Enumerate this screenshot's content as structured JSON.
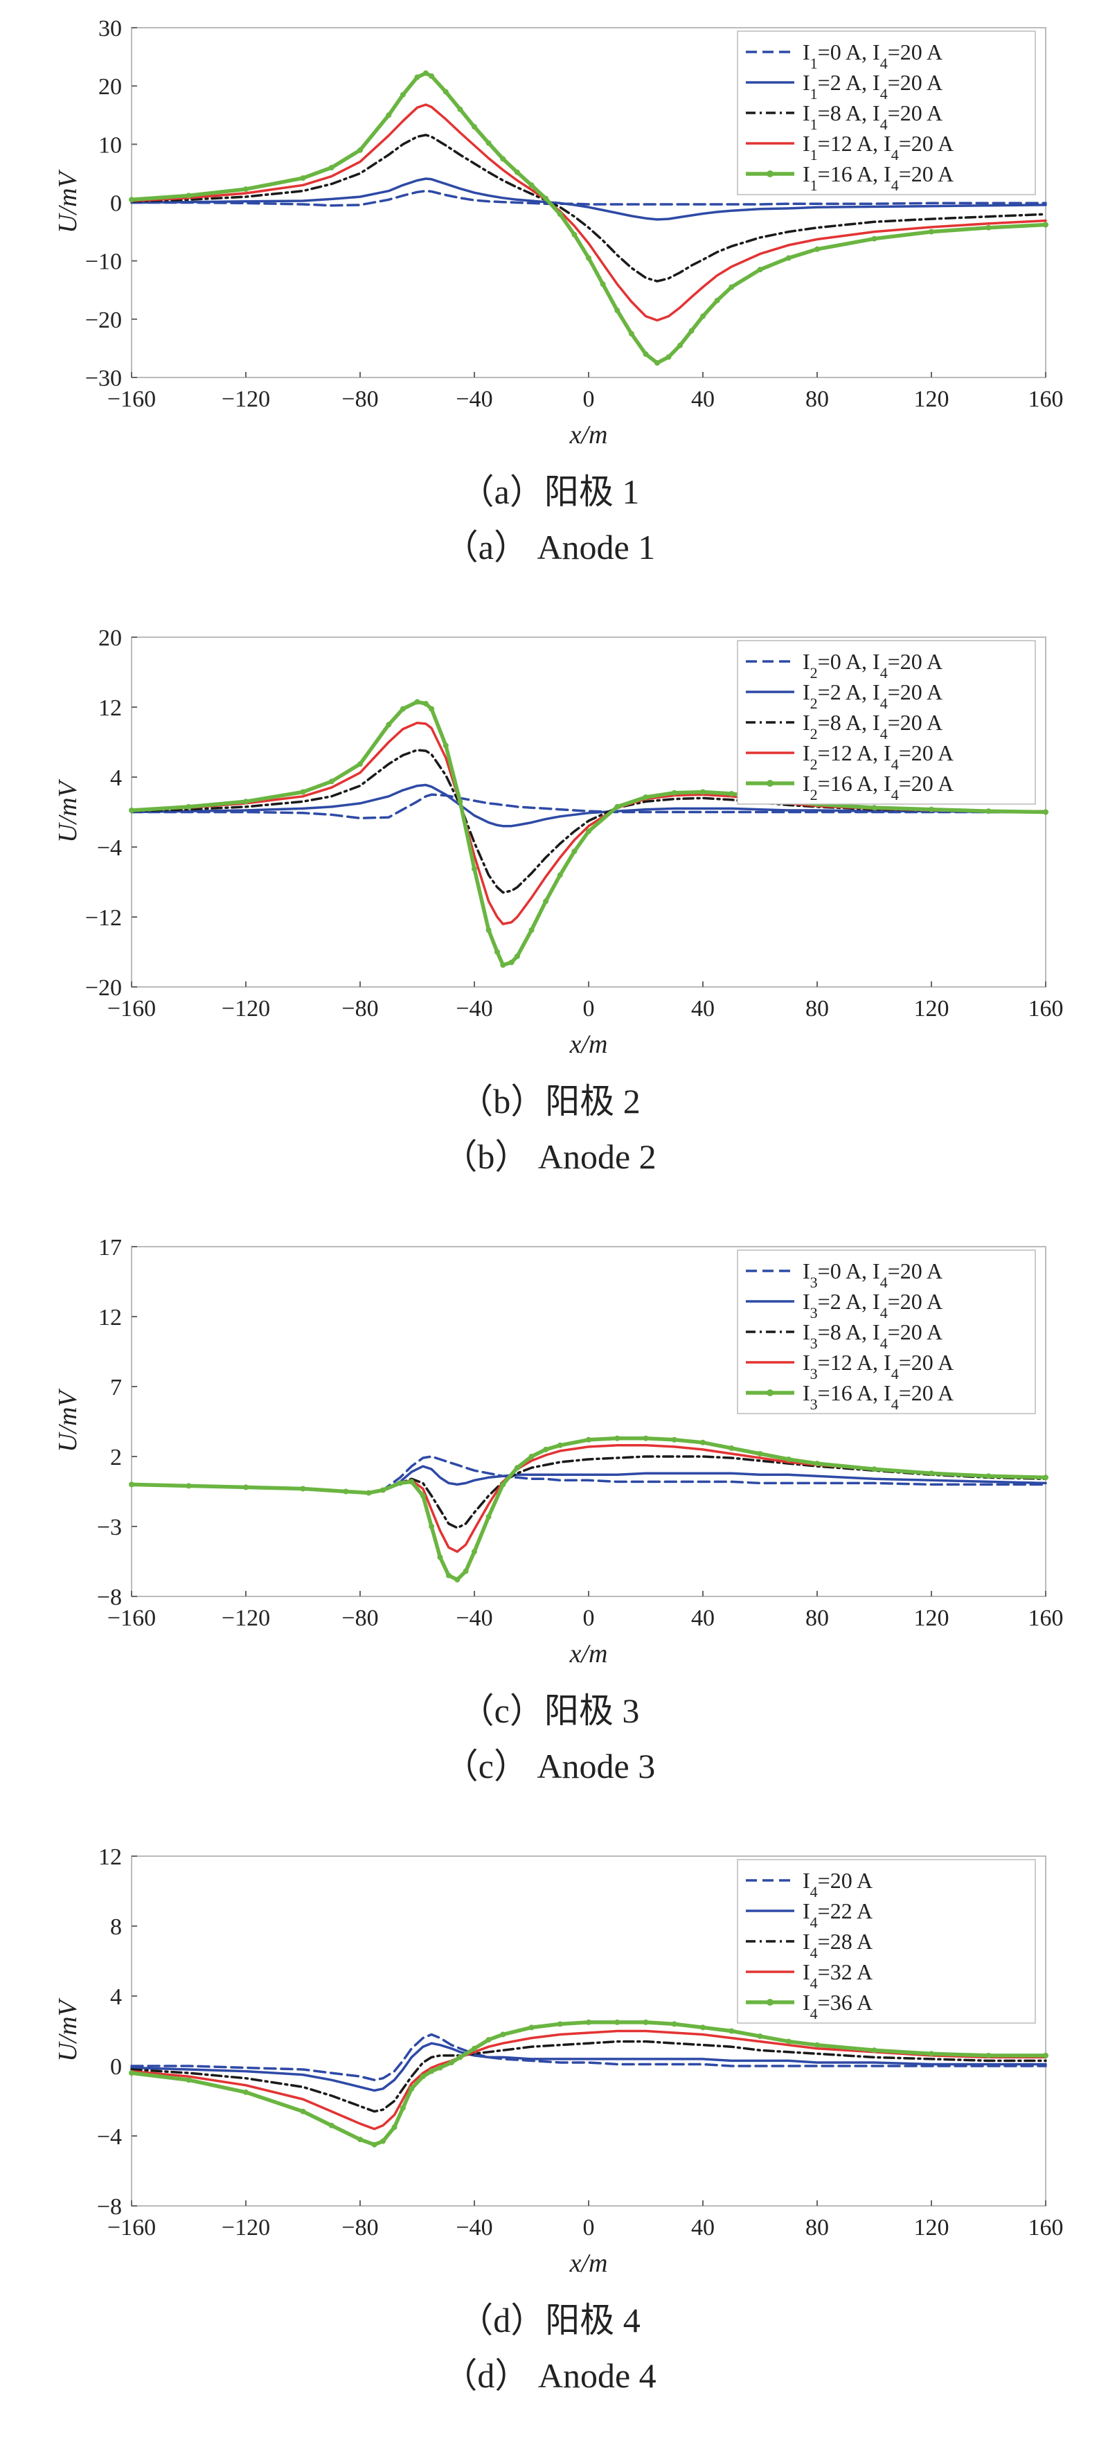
{
  "chart_data": [
    {
      "type": "line",
      "xlabel": "x/m",
      "ylabel": "U/mV",
      "xlim": [
        -160,
        160
      ],
      "ylim": [
        -30,
        30
      ],
      "xticks": [
        "−160",
        "−120",
        "−80",
        "−40",
        "0",
        "40",
        "80",
        "120",
        "160"
      ],
      "yticks": [
        "30",
        "20",
        "10",
        "0",
        "−10",
        "−20",
        "−30"
      ],
      "legend_position": "top-right",
      "caption_cn": "（a）阳极 1",
      "caption_en": "（a） Anode 1",
      "x": [
        -160,
        -140,
        -120,
        -100,
        -90,
        -80,
        -70,
        -65,
        -60,
        -57,
        -55,
        -50,
        -45,
        -40,
        -35,
        -30,
        -25,
        -20,
        -15,
        -10,
        -5,
        0,
        5,
        10,
        15,
        20,
        24,
        28,
        32,
        36,
        40,
        45,
        50,
        60,
        70,
        80,
        100,
        120,
        140,
        160
      ],
      "series": [
        {
          "name": "I₁=0 A, I₄=20 A",
          "values": [
            0,
            0,
            -0.1,
            -0.3,
            -0.5,
            -0.4,
            0.5,
            1.2,
            1.8,
            2.0,
            1.9,
            1.3,
            0.8,
            0.4,
            0.2,
            0.1,
            0,
            -0.1,
            -0.2,
            -0.2,
            -0.2,
            -0.3,
            -0.3,
            -0.3,
            -0.3,
            -0.3,
            -0.3,
            -0.3,
            -0.3,
            -0.3,
            -0.3,
            -0.3,
            -0.3,
            -0.3,
            -0.2,
            -0.2,
            -0.2,
            -0.1,
            -0.1,
            -0.1
          ]
        },
        {
          "name": "I₁=2 A, I₄=20 A",
          "values": [
            0,
            0.1,
            0.2,
            0.3,
            0.6,
            1.0,
            2.0,
            3.0,
            3.8,
            4.1,
            4.0,
            3.2,
            2.4,
            1.7,
            1.2,
            0.8,
            0.5,
            0.3,
            0.1,
            -0.1,
            -0.4,
            -0.8,
            -1.3,
            -1.8,
            -2.3,
            -2.7,
            -2.9,
            -2.8,
            -2.5,
            -2.2,
            -1.9,
            -1.6,
            -1.4,
            -1.1,
            -1.0,
            -0.8,
            -0.7,
            -0.6,
            -0.5,
            -0.4
          ]
        },
        {
          "name": "I₁=8 A, I₄=20 A",
          "values": [
            0.2,
            0.5,
            1.0,
            2.0,
            3.2,
            5.0,
            8.2,
            10.0,
            11.3,
            11.6,
            11.3,
            9.8,
            8.2,
            6.7,
            5.2,
            3.8,
            2.6,
            1.5,
            0.4,
            -0.8,
            -2.4,
            -4.3,
            -6.5,
            -9.0,
            -11.2,
            -12.9,
            -13.5,
            -13.0,
            -12.0,
            -10.8,
            -9.8,
            -8.5,
            -7.5,
            -6.0,
            -5.0,
            -4.3,
            -3.3,
            -2.8,
            -2.4,
            -2.0
          ]
        },
        {
          "name": "I₁=12 A, I₄=20 A",
          "values": [
            0.3,
            0.8,
            1.6,
            3.0,
            4.5,
            7.0,
            11.5,
            14.0,
            16.3,
            16.8,
            16.4,
            14.3,
            12.0,
            9.8,
            7.6,
            5.6,
            3.8,
            2.2,
            0.5,
            -1.5,
            -4.0,
            -7.0,
            -10.5,
            -14.0,
            -17.0,
            -19.5,
            -20.2,
            -19.5,
            -18.0,
            -16.2,
            -14.5,
            -12.5,
            -11.0,
            -8.8,
            -7.3,
            -6.3,
            -5.0,
            -4.2,
            -3.6,
            -3.1
          ]
        },
        {
          "name": "I₁=16 A, I₄=20 A",
          "values": [
            0.5,
            1.2,
            2.3,
            4.2,
            6.0,
            9.0,
            15.0,
            18.5,
            21.5,
            22.2,
            21.7,
            19.0,
            16.0,
            13.0,
            10.2,
            7.5,
            5.2,
            3.0,
            0.7,
            -2.0,
            -5.5,
            -9.5,
            -14.0,
            -18.5,
            -22.5,
            -26.0,
            -27.5,
            -26.5,
            -24.5,
            -22.0,
            -19.5,
            -16.8,
            -14.5,
            -11.5,
            -9.5,
            -8.0,
            -6.2,
            -5.0,
            -4.3,
            -3.8
          ]
        }
      ]
    },
    {
      "type": "line",
      "xlabel": "x/m",
      "ylabel": "U/mV",
      "xlim": [
        -160,
        160
      ],
      "ylim": [
        -20,
        20
      ],
      "xticks": [
        "−160",
        "−120",
        "−80",
        "−40",
        "0",
        "40",
        "80",
        "120",
        "160"
      ],
      "yticks": [
        "20",
        "12",
        "4",
        "−4",
        "−12",
        "−20"
      ],
      "legend_position": "top-right",
      "caption_cn": "（b）阳极 2",
      "caption_en": "（b） Anode 2",
      "x": [
        -160,
        -140,
        -120,
        -100,
        -90,
        -80,
        -70,
        -65,
        -60,
        -57,
        -55,
        -50,
        -45,
        -40,
        -35,
        -32,
        -30,
        -27,
        -25,
        -20,
        -15,
        -10,
        -5,
        0,
        10,
        20,
        30,
        40,
        50,
        60,
        70,
        80,
        100,
        120,
        140,
        160
      ],
      "series": [
        {
          "name": "I₂=0 A, I₄=20 A",
          "values": [
            0,
            0,
            0,
            -0.1,
            -0.3,
            -0.7,
            -0.6,
            0.3,
            1.2,
            1.8,
            2.0,
            1.9,
            1.6,
            1.3,
            1.0,
            0.9,
            0.8,
            0.7,
            0.6,
            0.5,
            0.4,
            0.3,
            0.2,
            0.1,
            0,
            0,
            0,
            0,
            0,
            0,
            0,
            0,
            0,
            0,
            0,
            0
          ]
        },
        {
          "name": "I₂=2 A, I₄=20 A",
          "values": [
            0,
            0.1,
            0.2,
            0.4,
            0.6,
            1.0,
            1.8,
            2.5,
            3.0,
            3.1,
            2.9,
            2.0,
            0.8,
            -0.4,
            -1.2,
            -1.5,
            -1.6,
            -1.6,
            -1.5,
            -1.2,
            -0.8,
            -0.5,
            -0.3,
            -0.1,
            0.1,
            0.3,
            0.4,
            0.4,
            0.4,
            0.3,
            0.2,
            0.2,
            0.1,
            0.1,
            0,
            0
          ]
        },
        {
          "name": "I₂=8 A, I₄=20 A",
          "values": [
            0.1,
            0.3,
            0.6,
            1.2,
            1.8,
            3.0,
            5.5,
            6.5,
            7.1,
            7.0,
            6.6,
            4.2,
            0.8,
            -3.5,
            -7.2,
            -8.6,
            -9.2,
            -9.0,
            -8.6,
            -7.0,
            -5.2,
            -3.6,
            -2.2,
            -1.0,
            0.5,
            1.2,
            1.5,
            1.6,
            1.4,
            1.1,
            0.8,
            0.6,
            0.3,
            0.2,
            0.1,
            0.1
          ]
        },
        {
          "name": "I₂=12 A, I₄=20 A",
          "values": [
            0.2,
            0.5,
            1.0,
            1.8,
            2.8,
            4.5,
            8.0,
            9.5,
            10.2,
            10.1,
            9.6,
            6.2,
            1.0,
            -5.0,
            -10.2,
            -12.0,
            -12.8,
            -12.6,
            -12.0,
            -9.8,
            -7.4,
            -5.2,
            -3.2,
            -1.6,
            0.5,
            1.5,
            1.9,
            2.0,
            1.8,
            1.4,
            1.0,
            0.7,
            0.4,
            0.2,
            0.1,
            0.1
          ]
        },
        {
          "name": "I₂=16 A, I₄=20 A",
          "values": [
            0.2,
            0.6,
            1.2,
            2.3,
            3.5,
            5.5,
            10.0,
            11.8,
            12.6,
            12.4,
            11.8,
            7.6,
            1.2,
            -6.5,
            -13.5,
            -16.0,
            -17.5,
            -17.2,
            -16.5,
            -13.5,
            -10.2,
            -7.2,
            -4.5,
            -2.2,
            0.6,
            1.7,
            2.2,
            2.3,
            2.1,
            1.7,
            1.2,
            0.9,
            0.5,
            0.3,
            0.1,
            0
          ]
        }
      ]
    },
    {
      "type": "line",
      "xlabel": "x/m",
      "ylabel": "U/mV",
      "xlim": [
        -160,
        160
      ],
      "ylim": [
        -8,
        17
      ],
      "xticks": [
        "−160",
        "−120",
        "−80",
        "−40",
        "0",
        "40",
        "80",
        "120",
        "160"
      ],
      "yticks": [
        "17",
        "12",
        "7",
        "2",
        "−3",
        "−8"
      ],
      "legend_position": "top-right",
      "caption_cn": "（c）阳极 3",
      "caption_en": "（c） Anode 3",
      "x": [
        -160,
        -140,
        -120,
        -100,
        -85,
        -77,
        -72,
        -66,
        -62,
        -58,
        -55,
        -52,
        -49,
        -46,
        -43,
        -40,
        -35,
        -30,
        -25,
        -20,
        -15,
        -10,
        0,
        10,
        20,
        30,
        40,
        50,
        60,
        70,
        80,
        100,
        120,
        140,
        160
      ],
      "series": [
        {
          "name": "I₃=0 A, I₄=20 A",
          "values": [
            0,
            -0.1,
            -0.2,
            -0.3,
            -0.5,
            -0.6,
            -0.4,
            0.5,
            1.3,
            1.9,
            2.0,
            1.8,
            1.6,
            1.4,
            1.2,
            1.0,
            0.8,
            0.6,
            0.5,
            0.4,
            0.4,
            0.3,
            0.3,
            0.2,
            0.2,
            0.2,
            0.2,
            0.2,
            0.1,
            0.1,
            0.1,
            0.1,
            0,
            0,
            0
          ]
        },
        {
          "name": "I₃=2 A, I₄=20 A",
          "values": [
            0,
            -0.1,
            -0.2,
            -0.3,
            -0.5,
            -0.6,
            -0.4,
            0.2,
            0.9,
            1.3,
            1.1,
            0.5,
            0.1,
            0,
            0.1,
            0.3,
            0.5,
            0.6,
            0.7,
            0.7,
            0.7,
            0.7,
            0.7,
            0.7,
            0.8,
            0.8,
            0.8,
            0.8,
            0.7,
            0.7,
            0.6,
            0.4,
            0.3,
            0.2,
            0.1
          ]
        },
        {
          "name": "I₃=8 A, I₄=20 A",
          "values": [
            0,
            -0.1,
            -0.2,
            -0.3,
            -0.5,
            -0.6,
            -0.4,
            0.1,
            0.4,
            0.1,
            -0.8,
            -1.8,
            -2.8,
            -3.1,
            -2.8,
            -2.0,
            -0.8,
            0.2,
            0.8,
            1.2,
            1.4,
            1.6,
            1.8,
            1.9,
            2.0,
            2.0,
            2.0,
            1.9,
            1.7,
            1.5,
            1.3,
            1.0,
            0.7,
            0.5,
            0.4
          ]
        },
        {
          "name": "I₃=12 A, I₄=20 A",
          "values": [
            0,
            -0.1,
            -0.2,
            -0.3,
            -0.5,
            -0.6,
            -0.4,
            0.1,
            0.3,
            -0.3,
            -1.8,
            -3.3,
            -4.5,
            -4.8,
            -4.3,
            -3.2,
            -1.4,
            0.2,
            1.1,
            1.7,
            2.1,
            2.4,
            2.7,
            2.8,
            2.8,
            2.7,
            2.5,
            2.2,
            1.9,
            1.6,
            1.4,
            1.1,
            0.8,
            0.6,
            0.5
          ]
        },
        {
          "name": "I₃=16 A, I₄=20 A",
          "values": [
            0,
            -0.1,
            -0.2,
            -0.3,
            -0.5,
            -0.6,
            -0.4,
            0.1,
            0.2,
            -0.8,
            -3.0,
            -5.2,
            -6.5,
            -6.8,
            -6.2,
            -4.8,
            -2.3,
            0,
            1.2,
            2.0,
            2.5,
            2.8,
            3.2,
            3.3,
            3.3,
            3.2,
            3.0,
            2.6,
            2.2,
            1.8,
            1.5,
            1.1,
            0.8,
            0.6,
            0.5
          ]
        }
      ]
    },
    {
      "type": "line",
      "xlabel": "x/m",
      "ylabel": "U/mV",
      "xlim": [
        -160,
        160
      ],
      "ylim": [
        -8,
        12
      ],
      "xticks": [
        "−160",
        "−120",
        "−80",
        "−40",
        "0",
        "40",
        "80",
        "120",
        "160"
      ],
      "yticks": [
        "12",
        "8",
        "4",
        "0",
        "−4",
        "−8"
      ],
      "legend_position": "top-right",
      "caption_cn": "（d）阳极 4",
      "caption_en": "（d） Anode 4",
      "x": [
        -160,
        -140,
        -120,
        -100,
        -90,
        -80,
        -75,
        -72,
        -68,
        -65,
        -62,
        -58,
        -55,
        -52,
        -48,
        -45,
        -40,
        -35,
        -30,
        -20,
        -10,
        0,
        10,
        20,
        30,
        40,
        50,
        60,
        70,
        80,
        100,
        120,
        140,
        160
      ],
      "series": [
        {
          "name": "I₄=20 A",
          "values": [
            0,
            0,
            -0.1,
            -0.2,
            -0.4,
            -0.6,
            -0.8,
            -0.7,
            -0.3,
            0.3,
            1.0,
            1.6,
            1.8,
            1.6,
            1.2,
            1.0,
            0.7,
            0.5,
            0.4,
            0.3,
            0.2,
            0.2,
            0.1,
            0.1,
            0.1,
            0.1,
            0,
            0,
            0,
            0,
            0,
            0,
            0,
            0
          ]
        },
        {
          "name": "I₄=22 A",
          "values": [
            -0.1,
            -0.2,
            -0.3,
            -0.5,
            -0.8,
            -1.2,
            -1.4,
            -1.3,
            -0.8,
            -0.2,
            0.5,
            1.1,
            1.3,
            1.2,
            1.0,
            0.8,
            0.6,
            0.5,
            0.5,
            0.4,
            0.4,
            0.4,
            0.4,
            0.4,
            0.4,
            0.4,
            0.3,
            0.3,
            0.3,
            0.2,
            0.2,
            0.1,
            0.1,
            0.1
          ]
        },
        {
          "name": "I₄=28 A",
          "values": [
            -0.2,
            -0.4,
            -0.7,
            -1.2,
            -1.7,
            -2.3,
            -2.6,
            -2.5,
            -2.0,
            -1.3,
            -0.6,
            0.2,
            0.5,
            0.6,
            0.6,
            0.6,
            0.7,
            0.8,
            0.9,
            1.1,
            1.2,
            1.3,
            1.4,
            1.4,
            1.3,
            1.2,
            1.1,
            0.9,
            0.8,
            0.7,
            0.5,
            0.4,
            0.3,
            0.3
          ]
        },
        {
          "name": "I₄=32 A",
          "values": [
            -0.3,
            -0.6,
            -1.1,
            -1.9,
            -2.6,
            -3.3,
            -3.6,
            -3.4,
            -2.8,
            -1.9,
            -1.0,
            -0.4,
            -0.1,
            0.1,
            0.3,
            0.5,
            0.8,
            1.1,
            1.3,
            1.6,
            1.8,
            1.9,
            2.0,
            2.0,
            1.9,
            1.8,
            1.6,
            1.4,
            1.2,
            1.0,
            0.8,
            0.6,
            0.5,
            0.5
          ]
        },
        {
          "name": "I₄=36 A",
          "values": [
            -0.4,
            -0.8,
            -1.5,
            -2.6,
            -3.4,
            -4.2,
            -4.5,
            -4.3,
            -3.5,
            -2.4,
            -1.3,
            -0.6,
            -0.3,
            -0.1,
            0.2,
            0.5,
            1.0,
            1.5,
            1.8,
            2.2,
            2.4,
            2.5,
            2.5,
            2.5,
            2.4,
            2.2,
            2.0,
            1.7,
            1.4,
            1.2,
            0.9,
            0.7,
            0.6,
            0.6
          ]
        }
      ]
    }
  ],
  "styles": {
    "colors": [
      "#2e4aa6",
      "#2e4aa6",
      "#1a1a1a",
      "#e33333",
      "#6ab541"
    ],
    "dashes": [
      "16,8",
      "",
      "14,6,3,6",
      "",
      ""
    ],
    "widths": [
      3.5,
      3.5,
      3.5,
      3.5,
      5.5
    ],
    "markers": [
      false,
      false,
      false,
      false,
      true
    ],
    "frame_color": "#bbbbbb"
  }
}
